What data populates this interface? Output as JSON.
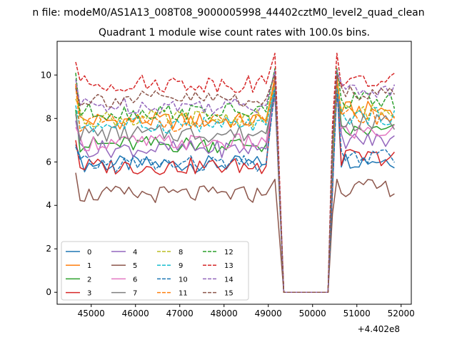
{
  "figure": {
    "suptitle": "n file: modeM0/AS1A13_008T08_9000005998_44402cztM0_level2_quad_clean",
    "title": "Quadrant 1 module wise count rates with 100.0s bins.",
    "offset_label": "+4.402e8"
  },
  "chart_data": {
    "type": "line",
    "title": "Quadrant 1 module wise count rates with 100.0s bins.",
    "xlabel": "",
    "ylabel": "",
    "x_offset": 440200000,
    "xlim": [
      44230,
      52230
    ],
    "ylim": [
      -0.55,
      11.55
    ],
    "xticks": [
      45000,
      46000,
      47000,
      48000,
      49000,
      50000,
      51000,
      52000
    ],
    "yticks": [
      0,
      2,
      4,
      6,
      8,
      10
    ],
    "grid": false,
    "legend_position": "lower left",
    "legend_columns": 4,
    "series": [
      {
        "name": "0",
        "color": "#1f77b4",
        "dash": "solid",
        "pre": 5.9,
        "post": 6.1,
        "start": 6.8,
        "peak": 9.6
      },
      {
        "name": "1",
        "color": "#ff7f0e",
        "dash": "solid",
        "pre": 7.9,
        "post": 8.4,
        "start": 9.6,
        "peak": 9.9
      },
      {
        "name": "2",
        "color": "#2ca02c",
        "dash": "solid",
        "pre": 6.8,
        "post": 7.4,
        "start": 8.4,
        "peak": 9.8
      },
      {
        "name": "3",
        "color": "#d62728",
        "dash": "solid",
        "pre": 5.8,
        "post": 6.2,
        "start": 7.0,
        "peak": 9.9
      },
      {
        "name": "4",
        "color": "#9467bd",
        "dash": "solid",
        "pre": 6.6,
        "post": 7.0,
        "start": 7.9,
        "peak": 9.7
      },
      {
        "name": "5",
        "color": "#8c564b",
        "dash": "solid",
        "pre": 4.5,
        "post": 4.8,
        "start": 5.5,
        "peak": 5.2
      },
      {
        "name": "6",
        "color": "#e377c2",
        "dash": "solid",
        "pre": 6.9,
        "post": 7.4,
        "start": 7.6,
        "peak": 9.0
      },
      {
        "name": "7",
        "color": "#7f7f7f",
        "dash": "solid",
        "pre": 7.3,
        "post": 7.8,
        "start": 8.2,
        "peak": 9.2
      },
      {
        "name": "8",
        "color": "#bcbd22",
        "dash": "dashed",
        "pre": 8.0,
        "post": 8.3,
        "start": 8.9,
        "peak": 9.5
      },
      {
        "name": "9",
        "color": "#17becf",
        "dash": "dashed",
        "pre": 7.7,
        "post": 8.1,
        "start": 8.6,
        "peak": 9.4
      },
      {
        "name": "10",
        "color": "#1f77b4",
        "dash": "dashed",
        "pre": 5.9,
        "post": 6.2,
        "start": 6.7,
        "peak": 9.3
      },
      {
        "name": "11",
        "color": "#ff7f0e",
        "dash": "dashed",
        "pre": 7.8,
        "post": 8.1,
        "start": 9.5,
        "peak": 9.8
      },
      {
        "name": "12",
        "color": "#2ca02c",
        "dash": "dashed",
        "pre": 8.3,
        "post": 8.8,
        "start": 10.1,
        "peak": 10.3
      },
      {
        "name": "13",
        "color": "#d62728",
        "dash": "dashed",
        "pre": 9.6,
        "post": 9.7,
        "start": 10.6,
        "peak": 11.0
      },
      {
        "name": "14",
        "color": "#9467bd",
        "dash": "dashed",
        "pre": 8.6,
        "post": 9.3,
        "start": 9.8,
        "peak": 10.2
      },
      {
        "name": "15",
        "color": "#8c564b",
        "dash": "dashed",
        "pre": 8.9,
        "post": 9.2,
        "start": 9.4,
        "peak": 10.0
      }
    ],
    "time_segments": {
      "active1": [
        44650,
        49150
      ],
      "gap": [
        49350,
        50350
      ],
      "active2": [
        50550,
        51850
      ],
      "gap_value": 0
    }
  }
}
